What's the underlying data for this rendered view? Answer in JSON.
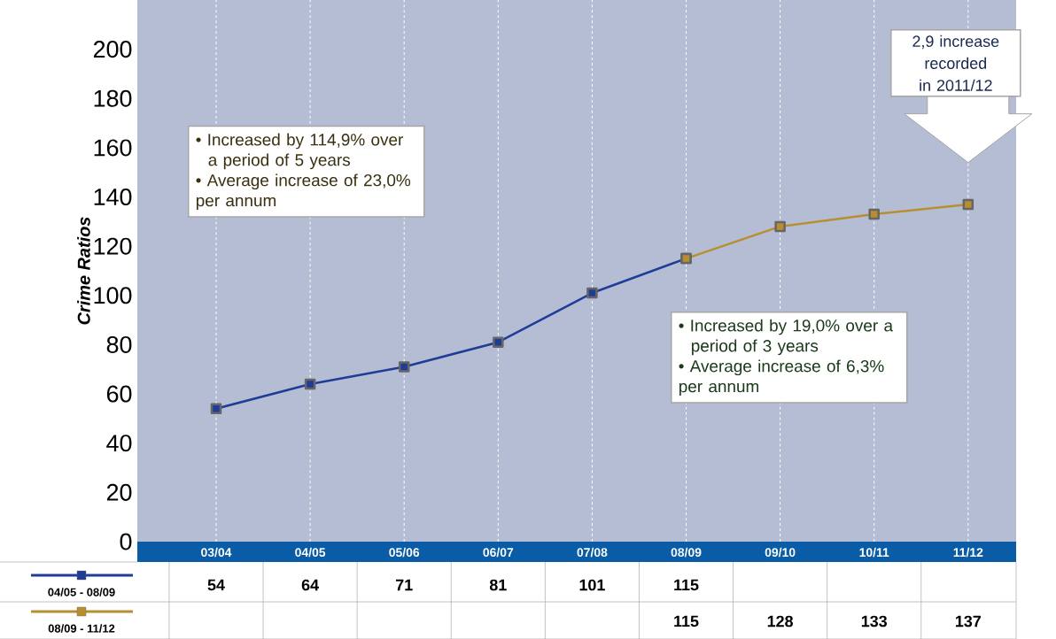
{
  "chart_data": {
    "type": "line",
    "ylabel": "Crime Ratios",
    "categories": [
      "03/04",
      "04/05",
      "05/06",
      "06/07",
      "07/08",
      "08/09",
      "09/10",
      "10/11",
      "11/12"
    ],
    "series": [
      {
        "name": "04/05 - 08/09",
        "color": "#1f3c96",
        "values": [
          54,
          64,
          71,
          81,
          101,
          115,
          null,
          null,
          null
        ]
      },
      {
        "name": "08/09 - 11/12",
        "color": "#b88f30",
        "values": [
          null,
          null,
          null,
          null,
          null,
          115,
          128,
          133,
          137
        ]
      }
    ],
    "ylim": [
      0,
      220
    ],
    "yticks": [
      0,
      20,
      40,
      60,
      80,
      100,
      120,
      140,
      160,
      180,
      200
    ],
    "grid": "x",
    "marker": "square",
    "line_style": "solid",
    "data_labels": true,
    "legend": "bottom left",
    "annotations": [
      "• Increased by 114,9% over a period of 5 years",
      "• Average increase of 23,0% per annum",
      "• Increased by 19,0% over a period of 3 years",
      "• Average increase of 6,3% per annum",
      "2,9 increase recorded in 2011/12"
    ]
  }
}
